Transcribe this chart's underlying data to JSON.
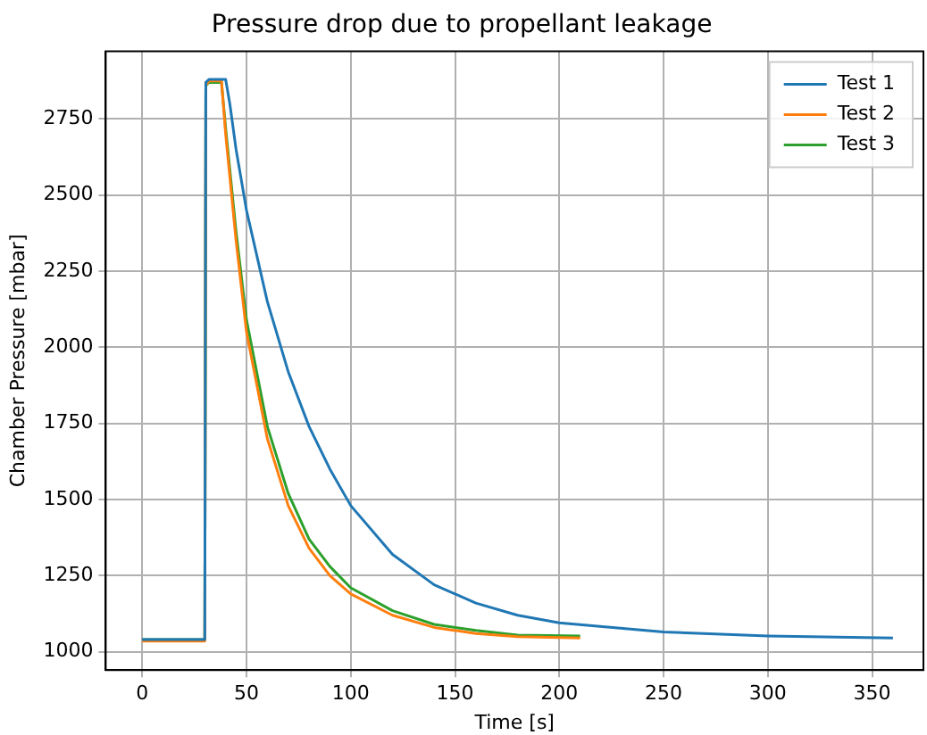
{
  "chart_data": {
    "type": "line",
    "title": "Pressure drop due to propellant leakage",
    "xlabel": "Time [s]",
    "ylabel": "Chamber Pressure [mbar]",
    "xlim": [
      -17.5,
      374.6
    ],
    "ylim": [
      940,
      2972
    ],
    "xticks": [
      0,
      50,
      100,
      150,
      200,
      250,
      300,
      350
    ],
    "yticks": [
      1000,
      1250,
      1500,
      1750,
      2000,
      2250,
      2500,
      2750
    ],
    "grid": true,
    "legend": "top right",
    "marker": "none",
    "line_style": "solid",
    "series": [
      {
        "name": "Test 1",
        "color": "#1f77b4",
        "x": [
          0,
          30,
          30.5,
          32,
          40,
          42,
          45,
          50,
          60,
          70,
          80,
          90,
          100,
          120,
          140,
          160,
          180,
          200,
          250,
          300,
          360
        ],
        "values": [
          1040,
          1040,
          2870,
          2880,
          2880,
          2800,
          2650,
          2450,
          2150,
          1920,
          1740,
          1600,
          1480,
          1320,
          1220,
          1160,
          1120,
          1095,
          1065,
          1052,
          1045
        ]
      },
      {
        "name": "Test 2",
        "color": "#ff7f0e",
        "x": [
          0,
          30,
          30.5,
          32,
          38,
          40,
          45,
          50,
          60,
          70,
          80,
          90,
          100,
          120,
          140,
          160,
          180,
          210
        ],
        "values": [
          1035,
          1035,
          2860,
          2875,
          2875,
          2700,
          2350,
          2050,
          1700,
          1480,
          1340,
          1250,
          1190,
          1120,
          1080,
          1060,
          1050,
          1045
        ]
      },
      {
        "name": "Test 3",
        "color": "#2ca02c",
        "x": [
          0,
          30,
          30.5,
          32,
          38,
          40,
          45,
          50,
          60,
          70,
          80,
          90,
          100,
          120,
          140,
          160,
          180,
          210
        ],
        "values": [
          1040,
          1040,
          2860,
          2870,
          2870,
          2720,
          2380,
          2090,
          1740,
          1520,
          1370,
          1280,
          1210,
          1135,
          1090,
          1070,
          1055,
          1052
        ]
      }
    ]
  }
}
